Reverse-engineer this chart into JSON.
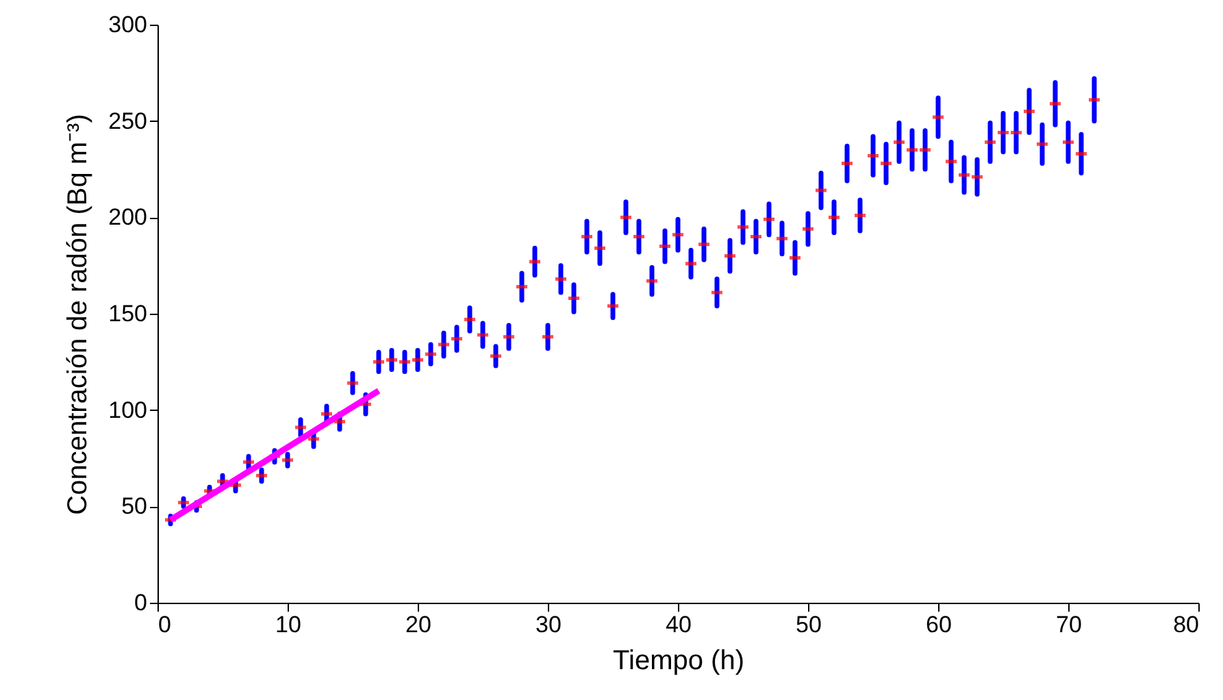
{
  "chart_data": {
    "type": "scatter",
    "xlabel": "Tiempo (h)",
    "ylabel": "Concentración de radón (Bq m⁻³)",
    "xlim": [
      0,
      80
    ],
    "xticks": [
      0,
      10,
      20,
      30,
      40,
      50,
      60,
      70,
      80
    ],
    "ylim": [
      0,
      300
    ],
    "yticks": [
      0,
      50,
      100,
      150,
      200,
      250,
      300
    ],
    "grid": false,
    "series": [
      {
        "color": "#ff0000",
        "x": [
          1,
          2,
          3,
          4,
          5,
          6,
          7,
          8,
          9,
          10,
          11,
          12,
          13,
          14,
          15,
          16,
          17,
          18,
          19,
          20,
          21,
          22,
          23,
          24,
          25,
          26,
          27,
          28,
          29,
          30,
          31,
          32,
          33,
          34,
          35,
          36,
          37,
          38,
          39,
          40,
          41,
          42,
          43,
          44,
          45,
          46,
          47,
          48,
          49,
          50,
          51,
          52,
          53,
          54,
          55,
          56,
          57,
          58,
          59,
          60,
          61,
          62,
          63,
          64,
          65,
          66,
          67,
          68,
          69,
          70,
          71,
          72
        ],
        "values": [
          43,
          52,
          50,
          58,
          63,
          61,
          73,
          66,
          76,
          74,
          91,
          85,
          98,
          94,
          114,
          103,
          125,
          126,
          125,
          126,
          129,
          134,
          137,
          147,
          139,
          128,
          138,
          164,
          177,
          138,
          168,
          158,
          190,
          184,
          154,
          200,
          190,
          167,
          185,
          191,
          176,
          186,
          161,
          180,
          195,
          190,
          199,
          189,
          179,
          194,
          214,
          200,
          228,
          201,
          232,
          228,
          239,
          235,
          235,
          252,
          229,
          222,
          221,
          239,
          244,
          244,
          255,
          238,
          259,
          239,
          233,
          261
        ],
        "errors": [
          2,
          2,
          2,
          2,
          3,
          3,
          3,
          3,
          3,
          3,
          4,
          4,
          4,
          4,
          5,
          5,
          5,
          5,
          5,
          5,
          5,
          6,
          6,
          6,
          6,
          5,
          6,
          7,
          7,
          6,
          7,
          7,
          8,
          8,
          6,
          8,
          8,
          7,
          8,
          8,
          7,
          8,
          7,
          8,
          8,
          8,
          8,
          8,
          8,
          8,
          9,
          8,
          9,
          8,
          10,
          10,
          10,
          10,
          10,
          10,
          10,
          9,
          9,
          10,
          10,
          10,
          11,
          10,
          11,
          10,
          10,
          11
        ]
      },
      {
        "type": "line",
        "color": "#ff00ff",
        "x": [
          1,
          17
        ],
        "values": [
          43,
          110
        ]
      }
    ]
  }
}
